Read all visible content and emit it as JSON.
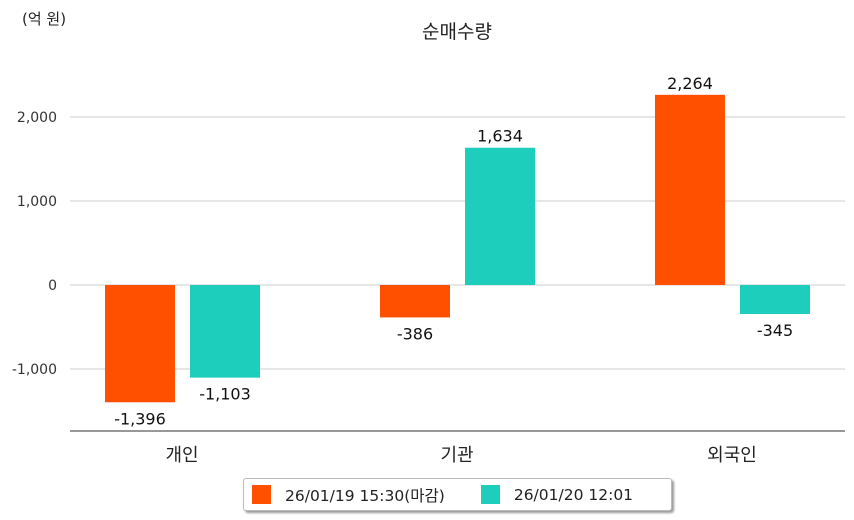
{
  "chart_data": {
    "type": "bar",
    "title": "순매수량",
    "unit_label": "(억 원)",
    "categories": [
      "개인",
      "기관",
      "외국인"
    ],
    "series": [
      {
        "name": "26/01/19 15:30(마감)",
        "color": "#ff5000",
        "values": [
          -1396,
          -386,
          2264
        ]
      },
      {
        "name": "26/01/20 12:01",
        "color": "#1dcebd",
        "values": [
          -1103,
          1634,
          -345
        ]
      }
    ],
    "data_labels": [
      [
        "-1,396",
        "-386",
        "2,264"
      ],
      [
        "-1,103",
        "1,634",
        "-345"
      ]
    ],
    "yticks": [
      2000,
      1000,
      0,
      -1000
    ],
    "ytick_labels": [
      "2,000",
      "1,000",
      "0",
      "-1,000"
    ],
    "ylim": [
      -1740,
      3000
    ],
    "grid": true,
    "legend_position": "bottom"
  }
}
